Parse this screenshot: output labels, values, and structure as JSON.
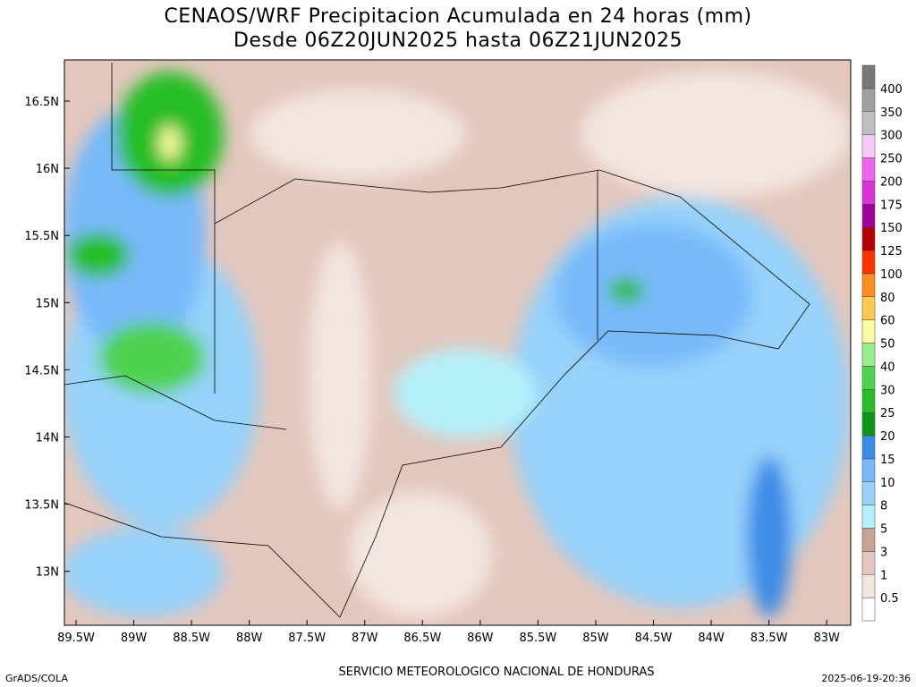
{
  "header": {
    "title": "CENAOS/WRF Precipitacion Acumulada en 24 horas (mm)",
    "subtitle": "Desde 06Z20JUN2025 hasta 06Z21JUN2025"
  },
  "map": {
    "lat_labels": [
      "16.5N",
      "16N",
      "15.5N",
      "15N",
      "14.5N",
      "14N",
      "13.5N",
      "13N"
    ],
    "lon_labels": [
      "89.5W",
      "89W",
      "88.5W",
      "88W",
      "87.5W",
      "87W",
      "86.5W",
      "86W",
      "85.5W",
      "85W",
      "84.5W",
      "84W",
      "83.5W",
      "83W"
    ]
  },
  "colorbar": {
    "labels": [
      "0.5",
      "1",
      "3",
      "5",
      "8",
      "10",
      "15",
      "20",
      "25",
      "30",
      "40",
      "50",
      "60",
      "80",
      "100",
      "125",
      "150",
      "175",
      "200",
      "250",
      "300",
      "350",
      "400"
    ],
    "colors": [
      "#ffffff",
      "#f3e6e0",
      "#e3c7bd",
      "#c9a197",
      "#b4f0fa",
      "#96d2fa",
      "#78b9fa",
      "#3c8ce6",
      "#0f9619",
      "#28be28",
      "#50d250",
      "#96f08c",
      "#fafaa0",
      "#ffc850",
      "#ff8c1e",
      "#ff3200",
      "#b40000",
      "#a000a0",
      "#dc32dc",
      "#f064f0",
      "#fac8fa",
      "#bebebe",
      "#a0a0a0",
      "#787878"
    ]
  },
  "footer": {
    "left": "GrADS/COLA",
    "center": "SERVICIO METEOROLOGICO NACIONAL DE HONDURAS",
    "right": "2025-06-19-20:36"
  }
}
